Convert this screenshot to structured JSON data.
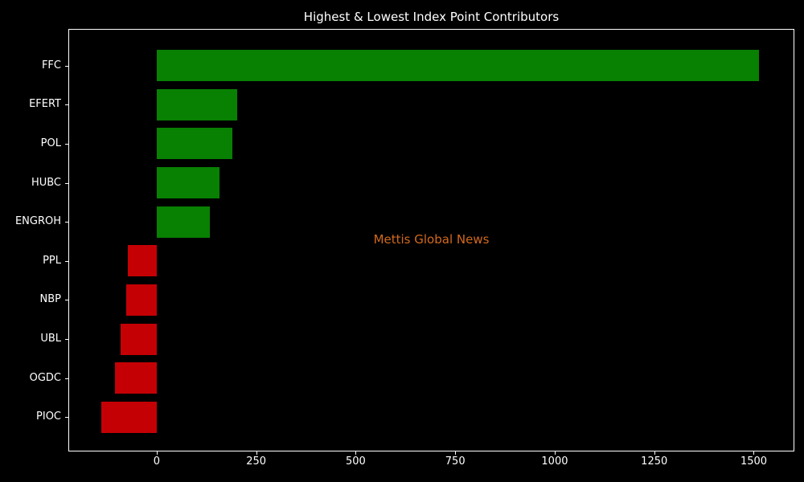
{
  "chart_data": {
    "type": "bar",
    "orientation": "horizontal",
    "title": "Highest & Lowest Index Point Contributors",
    "categories": [
      "FFC",
      "EFERT",
      "POL",
      "HUBC",
      "ENGROH",
      "PPL",
      "NBP",
      "UBL",
      "OGDC",
      "PIOC"
    ],
    "values": [
      1514,
      203,
      191,
      158,
      133,
      -73,
      -77,
      -91,
      -104,
      -139
    ],
    "xlabel": "",
    "ylabel": "",
    "xlim": [
      -220,
      1600
    ],
    "x_ticks": [
      0,
      250,
      500,
      750,
      1000,
      1250,
      1500
    ],
    "grid": false,
    "legend": null,
    "annotations": [
      {
        "text": "Mettis Global News",
        "position": "center",
        "color": "#d2691e"
      }
    ],
    "colors": {
      "background": "#000000",
      "positive_bar": "#088002",
      "negative_bar": "#c40005",
      "axis": "#ffffff",
      "text": "#ffffff"
    }
  }
}
